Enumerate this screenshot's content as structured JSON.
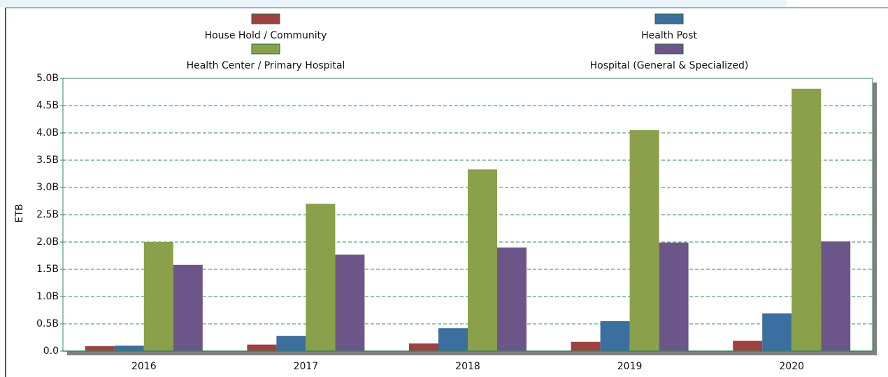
{
  "chart_data": {
    "type": "bar",
    "y_label": "ETB",
    "categories": [
      "2016",
      "2017",
      "2018",
      "2019",
      "2020"
    ],
    "series": [
      {
        "name": "House Hold / Community",
        "color": "#a0413f",
        "values": [
          90000000,
          120000000,
          140000000,
          170000000,
          190000000
        ]
      },
      {
        "name": "Health Post",
        "color": "#3a6fa0",
        "values": [
          100000000,
          280000000,
          420000000,
          550000000,
          690000000
        ]
      },
      {
        "name": "Health Center / Primary Hospital",
        "color": "#8aa04a",
        "values": [
          2000000000,
          2700000000,
          3330000000,
          4050000000,
          4810000000
        ]
      },
      {
        "name": "Hospital (General & Specialized)",
        "color": "#6c5589",
        "values": [
          1580000000,
          1770000000,
          1900000000,
          1990000000,
          2010000000
        ]
      }
    ],
    "ylim": [
      0,
      5000000000
    ],
    "yticks": [
      {
        "value": 0,
        "label": "0.0"
      },
      {
        "value": 500000000,
        "label": "0.5B"
      },
      {
        "value": 1000000000,
        "label": "1.0B"
      },
      {
        "value": 1500000000,
        "label": "1.5B"
      },
      {
        "value": 2000000000,
        "label": "2.0B"
      },
      {
        "value": 2500000000,
        "label": "2.5B"
      },
      {
        "value": 3000000000,
        "label": "3.0B"
      },
      {
        "value": 3500000000,
        "label": "3.5B"
      },
      {
        "value": 4000000000,
        "label": "4.0B"
      },
      {
        "value": 4500000000,
        "label": "4.5B"
      },
      {
        "value": 5000000000,
        "label": "5.0B"
      }
    ],
    "grid": true
  }
}
